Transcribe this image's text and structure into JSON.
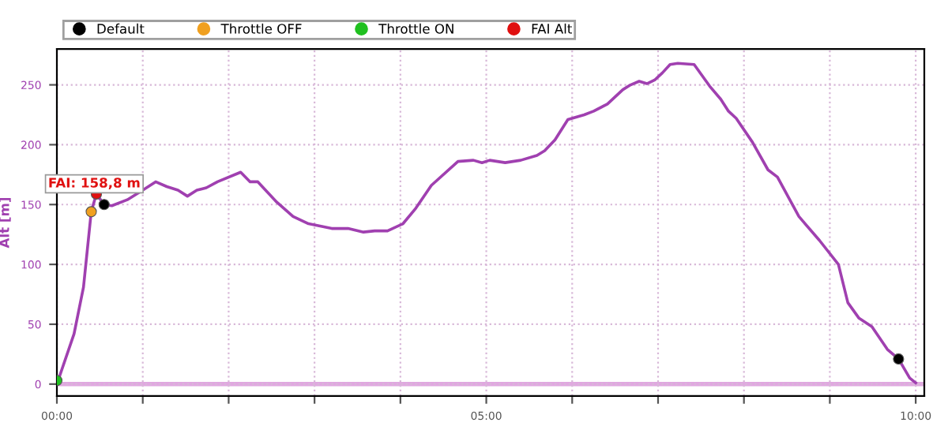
{
  "chart_data": {
    "type": "line",
    "ylabel": "Alt [m]",
    "xlim": [
      0,
      10.1
    ],
    "xticks": [
      {
        "value": 0,
        "label": "00:00"
      },
      {
        "value": 1,
        "label": null
      },
      {
        "value": 2,
        "label": null
      },
      {
        "value": 3,
        "label": null
      },
      {
        "value": 4,
        "label": null
      },
      {
        "value": 5,
        "label": "05:00"
      },
      {
        "value": 6,
        "label": null
      },
      {
        "value": 7,
        "label": null
      },
      {
        "value": 8,
        "label": null
      },
      {
        "value": 9,
        "label": null
      },
      {
        "value": 10,
        "label": "10:00"
      }
    ],
    "ylim": [
      -10,
      280
    ],
    "yticks": [
      0,
      50,
      100,
      150,
      200,
      250
    ],
    "grid": true,
    "legend": "top",
    "ref_lines": [
      {
        "axis": "y",
        "value": 0,
        "color": "#e0a8e0"
      }
    ],
    "annotations": [
      {
        "text": "FAI: 158,8 m",
        "x": 0.46,
        "y": 158.8
      }
    ],
    "series": [
      {
        "color": "#a040b0",
        "marker": "none",
        "x": [
          0,
          0.2,
          0.31,
          0.4,
          0.46,
          0.55,
          0.64,
          0.82,
          1.0,
          1.15,
          1.28,
          1.41,
          1.52,
          1.63,
          1.74,
          1.87,
          2.14,
          2.25,
          2.34,
          2.56,
          2.75,
          2.93,
          3.2,
          3.39,
          3.57,
          3.7,
          3.85,
          4.03,
          4.18,
          4.36,
          4.67,
          4.85,
          4.95,
          5.04,
          5.22,
          5.4,
          5.59,
          5.68,
          5.8,
          5.95,
          6.14,
          6.25,
          6.41,
          6.59,
          6.68,
          6.78,
          6.87,
          6.96,
          7.05,
          7.14,
          7.23,
          7.42,
          7.6,
          7.73,
          7.82,
          7.91,
          8.1,
          8.28,
          8.39,
          8.64,
          8.88,
          9.1,
          9.21,
          9.34,
          9.49,
          9.67,
          9.8,
          9.93,
          10.0
        ],
        "values": [
          0,
          42,
          81,
          144,
          158.8,
          150,
          149,
          154,
          162,
          169,
          165,
          162,
          157,
          162,
          164,
          169,
          177,
          169,
          169,
          152,
          140,
          134,
          130,
          130,
          127,
          128,
          128,
          134,
          147,
          166,
          186,
          187,
          185,
          187,
          185,
          187,
          191,
          195,
          204,
          221,
          225,
          228,
          234,
          246,
          250,
          253,
          251,
          254,
          260,
          267,
          268,
          267,
          249,
          238,
          228,
          222,
          202,
          179,
          173,
          140,
          120,
          100,
          68,
          55,
          48,
          29,
          21,
          5,
          1
        ]
      },
      {
        "type": "scatter",
        "name": "Default",
        "color": "#000000",
        "marker": "circle",
        "x": [
          0.55,
          9.8
        ],
        "values": [
          150,
          21
        ]
      },
      {
        "type": "scatter",
        "name": "Throttle OFF",
        "color": "#f0a020",
        "marker": "circle",
        "x": [
          0.4
        ],
        "values": [
          144
        ]
      },
      {
        "type": "scatter",
        "name": "Throttle ON",
        "color": "#20c020",
        "marker": "circle",
        "x": [
          0
        ],
        "values": [
          3
        ]
      },
      {
        "type": "scatter",
        "name": "FAI Alt",
        "color": "#e01010",
        "marker": "circle",
        "x": [
          0.46
        ],
        "values": [
          158.8
        ]
      }
    ]
  }
}
